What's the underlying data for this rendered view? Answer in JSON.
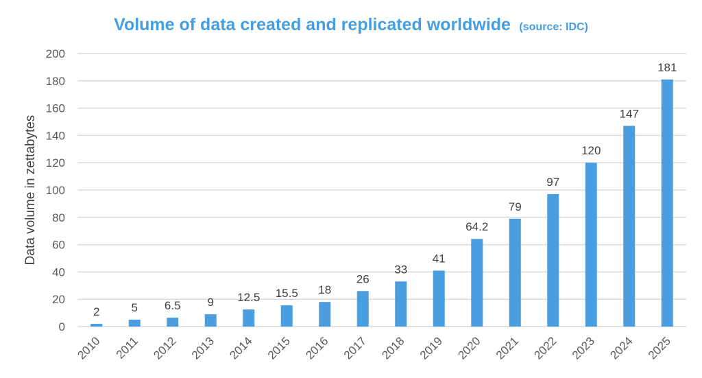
{
  "chart_data": {
    "type": "bar",
    "title": "Volume of data created and replicated worldwide",
    "subtitle": "(source: IDC)",
    "xlabel": "",
    "ylabel": "Data volume in zettabytes",
    "ylim": [
      0,
      200
    ],
    "yticks": [
      0,
      20,
      40,
      60,
      80,
      100,
      120,
      140,
      160,
      180,
      200
    ],
    "grid": true,
    "bar_color": "#4a9ddf",
    "categories": [
      "2010",
      "2011",
      "2012",
      "2013",
      "2014",
      "2015",
      "2016",
      "2017",
      "2018",
      "2019",
      "2020",
      "2021",
      "2022",
      "2023",
      "2024",
      "2025"
    ],
    "values": [
      2,
      5,
      6.5,
      9,
      12.5,
      15.5,
      18,
      26,
      33,
      41,
      64.2,
      79,
      97,
      120,
      147,
      181
    ],
    "data_labels": [
      "2",
      "5",
      "6.5",
      "9",
      "12.5",
      "15.5",
      "18",
      "26",
      "33",
      "41",
      "64.2",
      "79",
      "97",
      "120",
      "147",
      "181"
    ]
  }
}
